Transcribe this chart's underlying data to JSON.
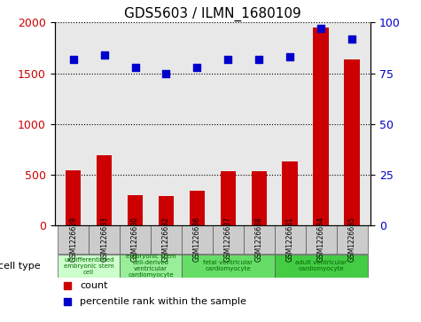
{
  "title": "GDS5603 / ILMN_1680109",
  "samples": [
    "GSM1226629",
    "GSM1226633",
    "GSM1226630",
    "GSM1226632",
    "GSM1226636",
    "GSM1226637",
    "GSM1226638",
    "GSM1226631",
    "GSM1226634",
    "GSM1226635"
  ],
  "counts": [
    540,
    690,
    300,
    285,
    340,
    530,
    530,
    630,
    1950,
    1640
  ],
  "percentiles": [
    82,
    84,
    78,
    75,
    78,
    82,
    82,
    83,
    97,
    92
  ],
  "count_color": "#cc0000",
  "percentile_color": "#0000cc",
  "ylim_left": [
    0,
    2000
  ],
  "ylim_right": [
    0,
    100
  ],
  "yticks_left": [
    0,
    500,
    1000,
    1500,
    2000
  ],
  "yticks_right": [
    0,
    25,
    50,
    75,
    100
  ],
  "cell_types": [
    {
      "label": "undifferentiated\nembryonic stem\ncell",
      "span": [
        0,
        2
      ],
      "color": "#ccffcc"
    },
    {
      "label": "embryonic stem\ncell-derived\nventricular\ncardiomyocyte",
      "span": [
        2,
        4
      ],
      "color": "#99ee99"
    },
    {
      "label": "fetal ventricular\ncardiomyocyte",
      "span": [
        4,
        7
      ],
      "color": "#66dd66"
    },
    {
      "label": "adult ventricular\ncardiomyocyte",
      "span": [
        7,
        10
      ],
      "color": "#44cc44"
    }
  ],
  "cell_type_label": "cell type",
  "legend_count_label": "count",
  "legend_percentile_label": "percentile rank within the sample",
  "bar_width": 0.5,
  "grid_color": "#000000",
  "ax_background": "#e8e8e8",
  "tick_label_color_left": "#cc0000",
  "tick_label_color_right": "#0000cc",
  "cell_label_color": "#006600"
}
